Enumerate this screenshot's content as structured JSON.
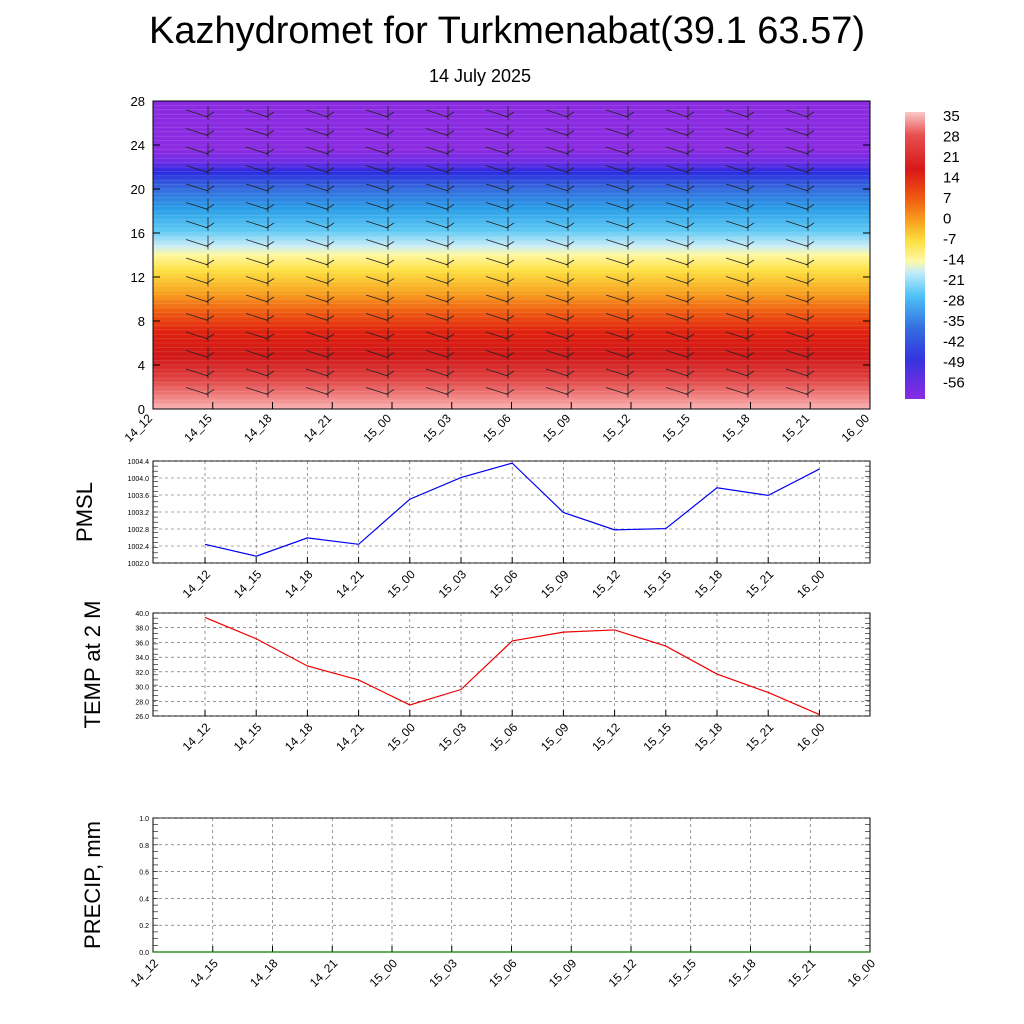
{
  "title": "Kazhydromet for Turkmenabat(39.1 63.57)",
  "subtitle": "14 July 2025",
  "chart_data": [
    {
      "type": "heatmap",
      "description_units": "temperature contours with wind barbs",
      "x_categories": [
        "14_12",
        "14_15",
        "14_18",
        "14_21",
        "15_00",
        "15_03",
        "15_06",
        "15_09",
        "15_12",
        "15_15",
        "15_18",
        "15_21",
        "16_00"
      ],
      "y_ticks": [
        0,
        4,
        8,
        12,
        16,
        20,
        24,
        28
      ],
      "ylim": [
        0,
        28
      ],
      "colorbar_labels": [
        "35",
        "28",
        "21",
        "14",
        "7",
        "0",
        "-7",
        "-14",
        "-21",
        "-28",
        "-35",
        "-42",
        "-49",
        "-56"
      ],
      "colorbar_colors": [
        "#fbb4b4",
        "#e84a4a",
        "#d81a1a",
        "#e62a14",
        "#f05a10",
        "#f8a020",
        "#fdd835",
        "#fff59d",
        "#b3e5fc",
        "#4fc3f7",
        "#29a0ec",
        "#3b6fe0",
        "#3437e0",
        "#8a2be2"
      ]
    },
    {
      "type": "line",
      "ylabel": "PMSL",
      "x": [
        "14_12",
        "14_15",
        "14_18",
        "14_21",
        "15_00",
        "15_03",
        "15_06",
        "15_09",
        "15_12",
        "15_15",
        "15_18",
        "15_21",
        "16_00"
      ],
      "series": [
        {
          "values": [
            1002.44,
            1002.16,
            1002.59,
            1002.44,
            1003.5,
            1004.01,
            1004.35,
            1003.19,
            1002.78,
            1002.81,
            1003.77,
            1003.59,
            1004.21
          ],
          "color": "#0000ee"
        }
      ],
      "yticks": [
        "1002.0",
        "1002.4",
        "1002.8",
        "1003.2",
        "1003.6",
        "1004.0",
        "1004.4"
      ],
      "ylim": [
        1002.0,
        1004.4
      ],
      "grid": true
    },
    {
      "type": "line",
      "ylabel": "TEMP at 2 M",
      "x": [
        "14_12",
        "14_15",
        "14_18",
        "14_21",
        "15_00",
        "15_03",
        "15_06",
        "15_09",
        "15_12",
        "15_15",
        "15_18",
        "15_21",
        "16_00"
      ],
      "series": [
        {
          "values": [
            39.4,
            36.5,
            32.8,
            30.9,
            27.5,
            29.6,
            36.2,
            37.4,
            37.7,
            35.5,
            31.7,
            29.2,
            26.2
          ],
          "color": "#ee0000"
        }
      ],
      "yticks": [
        "26.0",
        "28.0",
        "30.0",
        "32.0",
        "34.0",
        "36.0",
        "38.0",
        "40.0"
      ],
      "ylim": [
        26.0,
        40.0
      ],
      "grid": true
    },
    {
      "type": "line",
      "ylabel": "PRECIP, mm",
      "x": [
        "14_12",
        "14_15",
        "14_18",
        "14_21",
        "15_00",
        "15_03",
        "15_06",
        "15_09",
        "15_12",
        "15_15",
        "15_18",
        "15_21",
        "16_00"
      ],
      "series": [
        {
          "values": [
            0,
            0,
            0,
            0,
            0,
            0,
            0,
            0,
            0,
            0,
            0,
            0,
            0
          ],
          "color": "#008000"
        }
      ],
      "yticks": [
        "0.0",
        "0.2",
        "0.4",
        "0.6",
        "0.8",
        "1.0"
      ],
      "ylim": [
        0.0,
        1.0
      ],
      "grid": true
    }
  ]
}
